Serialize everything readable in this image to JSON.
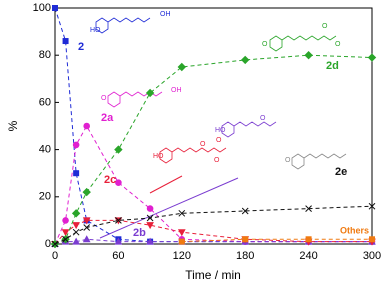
{
  "chart_data": {
    "type": "line",
    "x_label": "Time / min",
    "y_label": "%",
    "x": [
      0,
      10,
      20,
      30,
      60,
      90,
      120,
      180,
      240,
      300
    ],
    "xlim": [
      0,
      300
    ],
    "xticks": [
      0,
      60,
      120,
      180,
      240,
      300
    ],
    "ylim": [
      0,
      100
    ],
    "yticks": [
      0,
      20,
      40,
      60,
      80,
      100
    ],
    "series": [
      {
        "name": "2",
        "color": "#1f2bd6",
        "marker": "square",
        "values": [
          100,
          86,
          30,
          10,
          2,
          1,
          1,
          1,
          1,
          1
        ]
      },
      {
        "name": "2a",
        "color": "#e020d0",
        "marker": "circle",
        "values": [
          0,
          10,
          42,
          50,
          26,
          15,
          2,
          1,
          1,
          1
        ]
      },
      {
        "name": "2b",
        "color": "#7a3cd0",
        "marker": "triangle-up",
        "values": [
          0,
          1,
          1,
          2,
          1,
          1,
          1,
          1,
          1,
          1
        ]
      },
      {
        "name": "2c",
        "color": "#e8203a",
        "marker": "triangle-down",
        "values": [
          0,
          5,
          8,
          10,
          10,
          8,
          5,
          2,
          1,
          1
        ]
      },
      {
        "name": "2d",
        "color": "#2aa52a",
        "marker": "diamond",
        "values": [
          0,
          2,
          13,
          22,
          40,
          64,
          75,
          78,
          80,
          79
        ]
      },
      {
        "name": "2e",
        "color": "#111111",
        "marker": "cross",
        "values": [
          0,
          2,
          5,
          7,
          10,
          11,
          13,
          14,
          15,
          16
        ]
      },
      {
        "name": "Others",
        "color": "#f07a10",
        "marker": "square",
        "values": [
          null,
          null,
          null,
          null,
          null,
          null,
          1,
          2,
          2,
          2
        ]
      }
    ],
    "atom_labels": [
      "HO",
      "OH",
      "O",
      "OH",
      "HO",
      "O",
      "O",
      "O",
      "HO",
      "O",
      "O",
      "O",
      "O",
      "O"
    ]
  }
}
